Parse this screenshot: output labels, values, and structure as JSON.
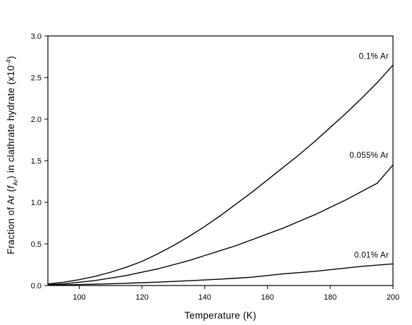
{
  "chart_data": {
    "type": "line",
    "title": "",
    "xlabel": "Temperature (K)",
    "ylabel": {
      "prefix": "Fraction of Ar (",
      "italic": "f",
      "subscript": "Ar",
      "middle": ") in clathrate hydrate (x10",
      "superscript": "-4",
      "suffix": ")"
    },
    "xlim": [
      90,
      200
    ],
    "ylim": [
      0.0,
      3.0
    ],
    "xticks": [
      100,
      120,
      140,
      160,
      180,
      200
    ],
    "xtick_labels": [
      "100",
      "120",
      "140",
      "160",
      "180",
      "200"
    ],
    "yticks": [
      0.0,
      0.5,
      1.0,
      1.5,
      2.0,
      2.5,
      3.0
    ],
    "ytick_labels": [
      "0.0",
      "0.5",
      "1.0",
      "1.5",
      "2.0",
      "2.5",
      "3.0"
    ],
    "grid": false,
    "legend": "none",
    "x": [
      90,
      95,
      100,
      105,
      110,
      115,
      120,
      125,
      130,
      135,
      140,
      145,
      150,
      155,
      160,
      165,
      170,
      175,
      180,
      185,
      190,
      195,
      200
    ],
    "series": [
      {
        "name": "0.1% Ar",
        "color": "#000000",
        "values": [
          0.02,
          0.04,
          0.07,
          0.11,
          0.16,
          0.22,
          0.29,
          0.38,
          0.48,
          0.59,
          0.71,
          0.84,
          0.98,
          1.12,
          1.27,
          1.42,
          1.57,
          1.73,
          1.9,
          2.07,
          2.25,
          2.44,
          2.65
        ]
      },
      {
        "name": "0.055% Ar",
        "color": "#000000",
        "values": [
          0.01,
          0.02,
          0.04,
          0.06,
          0.09,
          0.12,
          0.16,
          0.2,
          0.25,
          0.3,
          0.36,
          0.42,
          0.48,
          0.55,
          0.62,
          0.69,
          0.77,
          0.85,
          0.94,
          1.03,
          1.13,
          1.23,
          1.45
        ]
      },
      {
        "name": "0.01% Ar",
        "color": "#000000",
        "values": [
          0.005,
          0.008,
          0.012,
          0.016,
          0.021,
          0.027,
          0.034,
          0.041,
          0.049,
          0.058,
          0.067,
          0.077,
          0.088,
          0.1,
          0.12,
          0.14,
          0.155,
          0.17,
          0.19,
          0.21,
          0.23,
          0.245,
          0.26
        ]
      }
    ]
  }
}
